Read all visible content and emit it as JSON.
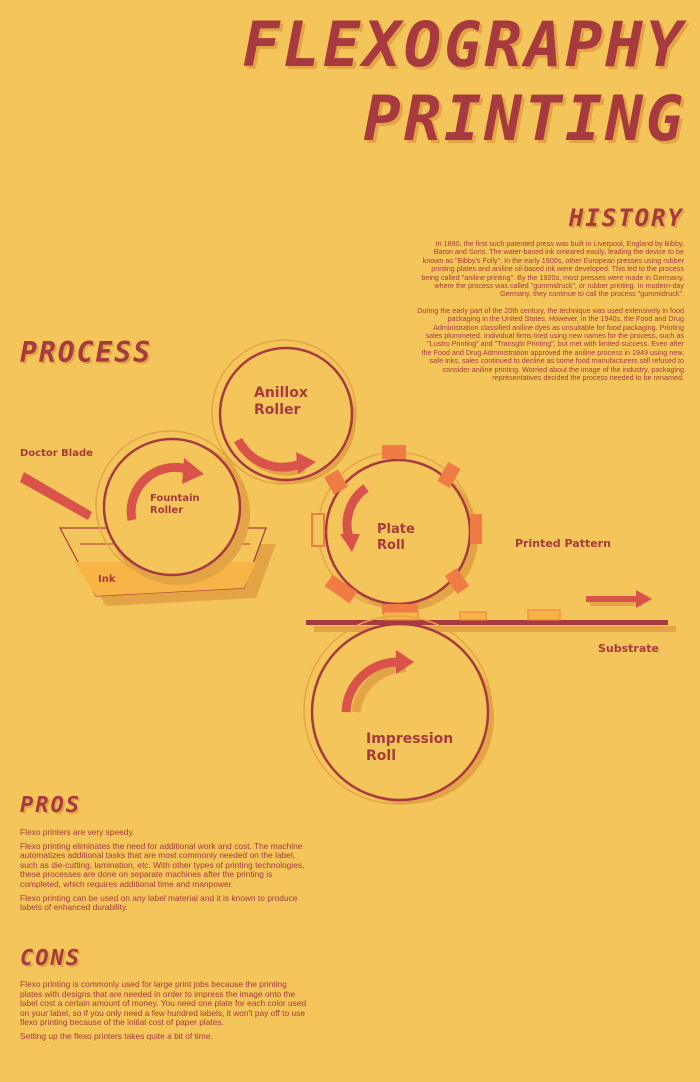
{
  "title": {
    "line1": "FLEXOGRAPHY",
    "line2": "PRINTING"
  },
  "history": {
    "heading": "HISTORY",
    "paragraphs": [
      "In 1890, the first such patented press was built in Liverpool, England by Bibby, Baron and Sons. The water-based ink smeared easily, leading the device to be known as \"Bibby's Folly\". In the early 1900s, other European presses using rubber printing plates and aniline oil-based ink were developed. This led to the process being called \"aniline printing\". By the 1920s, most presses were made in Germany, where the process was called \"gummidruck\", or rubber printing. In modern-day Germany, they continue to call the process \"gummidruck\".",
      "During the early part of the 20th century, the technique was used extensively in food packaging in the United States. However, in the 1940s, the Food and Drug Administration classified aniline dyes as unsuitable for food packaging. Printing sales plummeted. Individual firms tried using new names for the process, such as \"Lustro Printing\" and \"Transglo Printing\", but met with limited success. Even after the Food and Drug Administration approved the aniline process in 1949 using new, safe inks, sales continued to decline as some food manufacturers still refused to consider aniline printing. Worried about the image of the industry, packaging representatives decided the process needed to be renamed."
    ]
  },
  "process": {
    "heading": "PROCESS",
    "labels": {
      "anilox_line1": "Anillox",
      "anilox_line2": "Roller",
      "doctor_blade": "Doctor Blade",
      "fountain_line1": "Fountain",
      "fountain_line2": "Roller",
      "ink": "Ink",
      "plate_line1": "Plate",
      "plate_line2": "Roll",
      "printed_pattern": "Printed Pattern",
      "substrate": "Substrate",
      "impression_line1": "Impression",
      "impression_line2": "Roll"
    }
  },
  "pros": {
    "heading": "PROS",
    "paragraphs": [
      "Flexo printers are very speedy.",
      "Flexo printing eliminates the need for additional work and cost. The machine automatizes additional tasks that are most commonly needed on the label, such as die-cutting, lamination, etc. With other types of printing technologies, these processes are done on separate machines after the printing is completed, which requires additional time and manpower.",
      "Flexo printing can be used on any label material and it is known to produce labels of enhanced durability."
    ]
  },
  "cons": {
    "heading": "CONS",
    "paragraphs": [
      "Flexo printing is commonly used for large print jobs because the printing plates with designs that are needed in order to impress the image onto the label cost a certain amount of money. You need one plate for each color used on your label, so if you only need a few hundred labels, it won't pay off to use flexo printing because of the initial cost of paper plates.",
      "Setting up the flexo printers takes quite a bit of time."
    ]
  },
  "colors": {
    "background": "#F4C55A",
    "dark_red": "#A63A3E",
    "shadow": "#E3A446",
    "arrow_red": "#D9534A",
    "orange": "#F07C45",
    "ink": "#F8B446"
  }
}
